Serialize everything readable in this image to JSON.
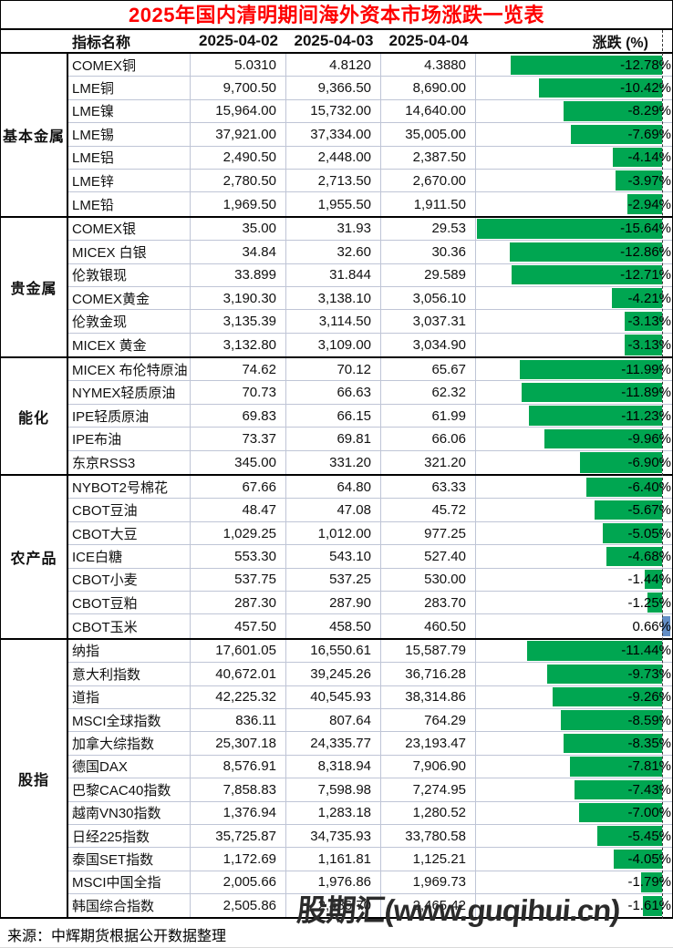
{
  "title": "2025年国内清明期间海外资本市场涨跌一览表",
  "source_note": "来源：中辉期货根据公开数据整理",
  "watermark": "股期汇(www.guqihui.cn)",
  "colors": {
    "title_red": "#ff0000",
    "bar_negative_green": "#00a651",
    "bar_positive_blue": "#638ec6",
    "grid_line": "#bfc5d6",
    "border_black": "#000000"
  },
  "chart_data": {
    "type": "table",
    "title": "2025年国内清明期间海外资本市场涨跌一览表",
    "columns": [
      "指标名称",
      "2025-04-02",
      "2025-04-03",
      "2025-04-04",
      "涨跌 (%)"
    ],
    "bar_axis": {
      "min_pct": -15.64,
      "max_pct": 0.66,
      "negative_bar_color": "#00a651",
      "positive_bar_color": "#638ec6"
    },
    "sections": [
      {
        "category": "基本金属",
        "rows": [
          {
            "name": "COMEX铜",
            "values": [
              "5.0310",
              "4.8120",
              "4.3880"
            ],
            "pct": -12.78,
            "pct_label": "-12.78%"
          },
          {
            "name": "LME铜",
            "values": [
              "9,700.50",
              "9,366.50",
              "8,690.00"
            ],
            "pct": -10.42,
            "pct_label": "-10.42%"
          },
          {
            "name": "LME镍",
            "values": [
              "15,964.00",
              "15,732.00",
              "14,640.00"
            ],
            "pct": -8.29,
            "pct_label": "-8.29%"
          },
          {
            "name": "LME锡",
            "values": [
              "37,921.00",
              "37,334.00",
              "35,005.00"
            ],
            "pct": -7.69,
            "pct_label": "-7.69%"
          },
          {
            "name": "LME铝",
            "values": [
              "2,490.50",
              "2,448.00",
              "2,387.50"
            ],
            "pct": -4.14,
            "pct_label": "-4.14%"
          },
          {
            "name": "LME锌",
            "values": [
              "2,780.50",
              "2,713.50",
              "2,670.00"
            ],
            "pct": -3.97,
            "pct_label": "-3.97%"
          },
          {
            "name": "LME铅",
            "values": [
              "1,969.50",
              "1,955.50",
              "1,911.50"
            ],
            "pct": -2.94,
            "pct_label": "-2.94%"
          }
        ]
      },
      {
        "category": "贵金属",
        "rows": [
          {
            "name": "COMEX银",
            "values": [
              "35.00",
              "31.93",
              "29.53"
            ],
            "pct": -15.64,
            "pct_label": "-15.64%"
          },
          {
            "name": "MICEX 白银",
            "values": [
              "34.84",
              "32.60",
              "30.36"
            ],
            "pct": -12.86,
            "pct_label": "-12.86%"
          },
          {
            "name": "伦敦银现",
            "values": [
              "33.899",
              "31.844",
              "29.589"
            ],
            "pct": -12.71,
            "pct_label": "-12.71%"
          },
          {
            "name": "COMEX黄金",
            "values": [
              "3,190.30",
              "3,138.10",
              "3,056.10"
            ],
            "pct": -4.21,
            "pct_label": "-4.21%"
          },
          {
            "name": "伦敦金现",
            "values": [
              "3,135.39",
              "3,114.50",
              "3,037.31"
            ],
            "pct": -3.13,
            "pct_label": "-3.13%"
          },
          {
            "name": "MICEX 黄金",
            "values": [
              "3,132.80",
              "3,109.00",
              "3,034.90"
            ],
            "pct": -3.13,
            "pct_label": "-3.13%"
          }
        ]
      },
      {
        "category": "能化",
        "rows": [
          {
            "name": "MICEX 布伦特原油",
            "values": [
              "74.62",
              "70.12",
              "65.67"
            ],
            "pct": -11.99,
            "pct_label": "-11.99%"
          },
          {
            "name": "NYMEX轻质原油",
            "values": [
              "70.73",
              "66.63",
              "62.32"
            ],
            "pct": -11.89,
            "pct_label": "-11.89%"
          },
          {
            "name": "IPE轻质原油",
            "values": [
              "69.83",
              "66.15",
              "61.99"
            ],
            "pct": -11.23,
            "pct_label": "-11.23%"
          },
          {
            "name": "IPE布油",
            "values": [
              "73.37",
              "69.81",
              "66.06"
            ],
            "pct": -9.96,
            "pct_label": "-9.96%"
          },
          {
            "name": "东京RSS3",
            "values": [
              "345.00",
              "331.20",
              "321.20"
            ],
            "pct": -6.9,
            "pct_label": "-6.90%"
          }
        ]
      },
      {
        "category": "农产品",
        "rows": [
          {
            "name": "NYBOT2号棉花",
            "values": [
              "67.66",
              "64.80",
              "63.33"
            ],
            "pct": -6.4,
            "pct_label": "-6.40%"
          },
          {
            "name": "CBOT豆油",
            "values": [
              "48.47",
              "47.08",
              "45.72"
            ],
            "pct": -5.67,
            "pct_label": "-5.67%"
          },
          {
            "name": "CBOT大豆",
            "values": [
              "1,029.25",
              "1,012.00",
              "977.25"
            ],
            "pct": -5.05,
            "pct_label": "-5.05%"
          },
          {
            "name": "ICE白糖",
            "values": [
              "553.30",
              "543.10",
              "527.40"
            ],
            "pct": -4.68,
            "pct_label": "-4.68%"
          },
          {
            "name": "CBOT小麦",
            "values": [
              "537.75",
              "537.25",
              "530.00"
            ],
            "pct": -1.44,
            "pct_label": "-1.44%"
          },
          {
            "name": "CBOT豆粕",
            "values": [
              "287.30",
              "287.90",
              "283.70"
            ],
            "pct": -1.25,
            "pct_label": "-1.25%"
          },
          {
            "name": "CBOT玉米",
            "values": [
              "457.50",
              "458.50",
              "460.50"
            ],
            "pct": 0.66,
            "pct_label": "0.66%"
          }
        ]
      },
      {
        "category": "股指",
        "rows": [
          {
            "name": "纳指",
            "values": [
              "17,601.05",
              "16,550.61",
              "15,587.79"
            ],
            "pct": -11.44,
            "pct_label": "-11.44%"
          },
          {
            "name": "意大利指数",
            "values": [
              "40,672.01",
              "39,245.26",
              "36,716.28"
            ],
            "pct": -9.73,
            "pct_label": "-9.73%"
          },
          {
            "name": "道指",
            "values": [
              "42,225.32",
              "40,545.93",
              "38,314.86"
            ],
            "pct": -9.26,
            "pct_label": "-9.26%"
          },
          {
            "name": "MSCI全球指数",
            "values": [
              "836.11",
              "807.64",
              "764.29"
            ],
            "pct": -8.59,
            "pct_label": "-8.59%"
          },
          {
            "name": "加拿大综指数",
            "values": [
              "25,307.18",
              "24,335.77",
              "23,193.47"
            ],
            "pct": -8.35,
            "pct_label": "-8.35%"
          },
          {
            "name": "德国DAX",
            "values": [
              "8,576.91",
              "8,318.94",
              "7,906.90"
            ],
            "pct": -7.81,
            "pct_label": "-7.81%"
          },
          {
            "name": "巴黎CAC40指数",
            "values": [
              "7,858.83",
              "7,598.98",
              "7,274.95"
            ],
            "pct": -7.43,
            "pct_label": "-7.43%"
          },
          {
            "name": "越南VN30指数",
            "values": [
              "1,376.94",
              "1,283.18",
              "1,280.52"
            ],
            "pct": -7.0,
            "pct_label": "-7.00%"
          },
          {
            "name": "日经225指数",
            "values": [
              "35,725.87",
              "34,735.93",
              "33,780.58"
            ],
            "pct": -5.45,
            "pct_label": "-5.45%"
          },
          {
            "name": "泰国SET指数",
            "values": [
              "1,172.69",
              "1,161.81",
              "1,125.21"
            ],
            "pct": -4.05,
            "pct_label": "-4.05%"
          },
          {
            "name": "MSCI中国全指",
            "values": [
              "2,005.66",
              "1,976.86",
              "1,969.73"
            ],
            "pct": -1.79,
            "pct_label": "-1.79%"
          },
          {
            "name": "韩国综合指数",
            "values": [
              "2,505.86",
              "2,486.70",
              "2,465.42"
            ],
            "pct": -1.61,
            "pct_label": "-1.61%"
          }
        ]
      }
    ]
  }
}
